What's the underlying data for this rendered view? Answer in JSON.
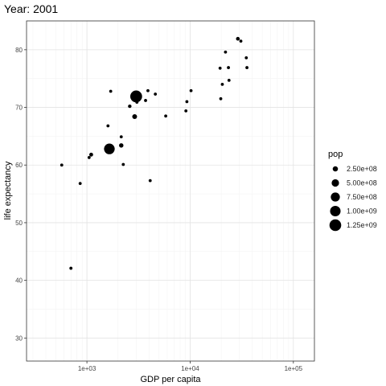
{
  "chart_data": {
    "type": "scatter",
    "title": "Year: 2001",
    "xlabel": "GDP per capita",
    "ylabel": "life expectancy",
    "x_scale": "log10",
    "xlim": [
      260,
      160000
    ],
    "ylim": [
      26,
      85
    ],
    "x_ticks": [
      1000,
      10000,
      100000
    ],
    "x_tick_labels": [
      "1e+03",
      "1e+04",
      "1e+05"
    ],
    "y_ticks": [
      30,
      40,
      50,
      60,
      70,
      80
    ],
    "y_tick_labels": [
      "30",
      "40",
      "50",
      "60",
      "70",
      "80"
    ],
    "grid": true,
    "legend": {
      "title": "pop",
      "position": "right",
      "values": [
        250000000,
        500000000,
        750000000,
        1000000000,
        1250000000
      ],
      "labels": [
        "2.50e+08",
        "5.00e+08",
        "7.50e+08",
        "1.00e+09",
        "1.25e+09"
      ]
    },
    "points": [
      {
        "x": 570,
        "y": 60,
        "pop": 20000000
      },
      {
        "x": 700,
        "y": 42.1,
        "pop": 10000000
      },
      {
        "x": 860,
        "y": 56.8,
        "pop": 10000000
      },
      {
        "x": 1050,
        "y": 61.3,
        "pop": 20000000
      },
      {
        "x": 1100,
        "y": 61.8,
        "pop": 135000000
      },
      {
        "x": 1650,
        "y": 62.8,
        "pop": 1030000000
      },
      {
        "x": 1600,
        "y": 66.8,
        "pop": 15000000
      },
      {
        "x": 1700,
        "y": 72.8,
        "pop": 80000000
      },
      {
        "x": 2150,
        "y": 63.4,
        "pop": 175000000
      },
      {
        "x": 2150,
        "y": 64.9,
        "pop": 8000000
      },
      {
        "x": 2250,
        "y": 60.1,
        "pop": 15000000
      },
      {
        "x": 2600,
        "y": 70.2,
        "pop": 110000000
      },
      {
        "x": 2900,
        "y": 68.4,
        "pop": 210000000
      },
      {
        "x": 3000,
        "y": 71.9,
        "pop": 1270000000
      },
      {
        "x": 3050,
        "y": 70.9,
        "pop": 40000000
      },
      {
        "x": 3700,
        "y": 71.2,
        "pop": 25000000
      },
      {
        "x": 3900,
        "y": 72.9,
        "pop": 25000000
      },
      {
        "x": 4100,
        "y": 57.3,
        "pop": 30000000
      },
      {
        "x": 4600,
        "y": 72.3,
        "pop": 15000000
      },
      {
        "x": 5800,
        "y": 68.5,
        "pop": 50000000
      },
      {
        "x": 9100,
        "y": 69.4,
        "pop": 85000000
      },
      {
        "x": 9300,
        "y": 71,
        "pop": 15000000
      },
      {
        "x": 10200,
        "y": 72.9,
        "pop": 30000000
      },
      {
        "x": 19500,
        "y": 76.8,
        "pop": 60000000
      },
      {
        "x": 19800,
        "y": 71.5,
        "pop": 40000000
      },
      {
        "x": 20500,
        "y": 74,
        "pop": 10000000
      },
      {
        "x": 22000,
        "y": 79.6,
        "pop": 15000000
      },
      {
        "x": 23500,
        "y": 76.9,
        "pop": 60000000
      },
      {
        "x": 23800,
        "y": 74.7,
        "pop": 10000000
      },
      {
        "x": 29000,
        "y": 81.9,
        "pop": 125000000
      },
      {
        "x": 31000,
        "y": 81.5,
        "pop": 30000000
      },
      {
        "x": 35000,
        "y": 78.6,
        "pop": 10000000
      },
      {
        "x": 35500,
        "y": 76.9,
        "pop": 10000000
      }
    ]
  }
}
